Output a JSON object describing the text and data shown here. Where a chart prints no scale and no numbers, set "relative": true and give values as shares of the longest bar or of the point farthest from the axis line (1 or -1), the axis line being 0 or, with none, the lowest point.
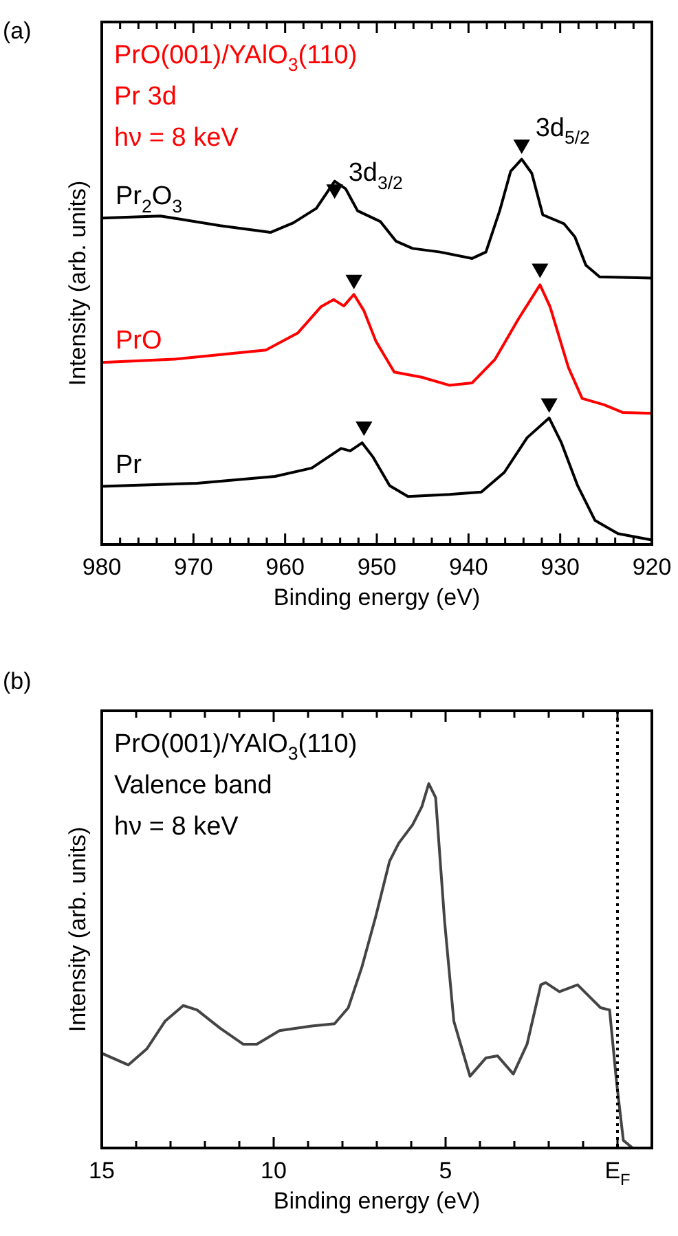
{
  "chart_data": [
    {
      "type": "line",
      "title": "(a)",
      "xlabel": "Binding energy (eV)",
      "ylabel": "Intensity (arb. units)",
      "relative": true,
      "legend": false,
      "tick_labels": "x",
      "marker": "none",
      "xlim": [
        980,
        920
      ],
      "xticks": [
        980,
        {
          "value": 978,
          "label": null
        },
        {
          "value": 976,
          "label": null
        },
        {
          "value": 974,
          "label": null
        },
        {
          "value": 972,
          "label": null
        },
        970,
        {
          "value": 968,
          "label": null
        },
        {
          "value": 966,
          "label": null
        },
        {
          "value": 964,
          "label": null
        },
        {
          "value": 962,
          "label": null
        },
        960,
        {
          "value": 958,
          "label": null
        },
        {
          "value": 956,
          "label": null
        },
        {
          "value": 954,
          "label": null
        },
        {
          "value": 952,
          "label": null
        },
        950,
        {
          "value": 948,
          "label": null
        },
        {
          "value": 946,
          "label": null
        },
        {
          "value": 944,
          "label": null
        },
        {
          "value": 942,
          "label": null
        },
        940,
        {
          "value": 938,
          "label": null
        },
        {
          "value": 936,
          "label": null
        },
        {
          "value": 934,
          "label": null
        },
        {
          "value": 932,
          "label": null
        },
        930,
        {
          "value": 928,
          "label": null
        },
        {
          "value": 926,
          "label": null
        },
        {
          "value": 924,
          "label": null
        },
        {
          "value": 922,
          "label": null
        },
        920
      ],
      "annotations": [
        "PrO(001)/YAlO$_{3}$(110)",
        "Pr 3d",
        "hν = 8 keV",
        {
          "text": "3d$_{3/2}$",
          "x": 954.6,
          "y": 0.888
        },
        {
          "text": "3d$_{5/2}$",
          "x": 934.2,
          "y": 1.0
        }
      ],
      "series": [
        {
          "name": "Pr$_{2}$O$_{3}$",
          "color": "#000000",
          "x": [
            980,
            973.6,
            967.1,
            961.6,
            959.1,
            956.6,
            954.6,
            953.4,
            952.1,
            949.6,
            947.9,
            946.1,
            943.1,
            939.6,
            938.1,
            936.6,
            935.4,
            934.2,
            933.1,
            931.9,
            929.6,
            928.4,
            927.2,
            925.7,
            920
          ],
          "values": [
            0.816,
            0.821,
            0.797,
            0.78,
            0.804,
            0.84,
            0.908,
            0.889,
            0.834,
            0.807,
            0.758,
            0.74,
            0.731,
            0.715,
            0.731,
            0.834,
            0.933,
            0.963,
            0.928,
            0.824,
            0.802,
            0.769,
            0.698,
            0.669,
            0.666
          ]
        },
        {
          "name": "PrO",
          "color": "#ff0000",
          "x": [
            980,
            972.1,
            962.1,
            958.6,
            956.1,
            954.7,
            953.6,
            952.5,
            951.4,
            950.1,
            948.1,
            945.1,
            942.1,
            939.6,
            937.1,
            934.6,
            932.2,
            931.1,
            929.1,
            927.6,
            925.2,
            923.2,
            920
          ],
          "values": [
            0.455,
            0.463,
            0.486,
            0.529,
            0.594,
            0.612,
            0.596,
            0.625,
            0.584,
            0.508,
            0.431,
            0.418,
            0.398,
            0.404,
            0.463,
            0.562,
            0.649,
            0.594,
            0.442,
            0.365,
            0.349,
            0.33,
            0.328
          ]
        },
        {
          "name": "Pr",
          "color": "#000000",
          "x": [
            980,
            969.6,
            961.1,
            957.1,
            953.9,
            952.9,
            951.6,
            950.4,
            948.6,
            946.6,
            942.1,
            938.6,
            936.1,
            933.6,
            931.2,
            929.9,
            928.1,
            926.2,
            923.7,
            920
          ],
          "values": [
            0.145,
            0.153,
            0.17,
            0.191,
            0.24,
            0.234,
            0.254,
            0.218,
            0.147,
            0.12,
            0.125,
            0.131,
            0.18,
            0.267,
            0.316,
            0.256,
            0.147,
            0.06,
            0.027,
            0.011
          ]
        },
        {
          "type": "scatter",
          "marker": "triangle",
          "color": "#000000",
          "x": [
            954.6,
            934.2,
            952.5,
            932.2,
            951.4,
            931.2
          ],
          "values": [
            0.888,
            1.0,
            0.662,
            0.69,
            0.295,
            0.353
          ]
        }
      ]
    },
    {
      "type": "line",
      "title": "(b)",
      "xlabel": "Binding energy (eV)",
      "ylabel": "Intensity (arb. units)",
      "relative": true,
      "legend": false,
      "tick_labels": "x",
      "marker": "none",
      "xlim": [
        15,
        -1
      ],
      "xticks": [
        15,
        {
          "value": 14,
          "label": null
        },
        {
          "value": 13,
          "label": null
        },
        {
          "value": 12,
          "label": null
        },
        {
          "value": 11,
          "label": null
        },
        10,
        {
          "value": 9,
          "label": null
        },
        {
          "value": 8,
          "label": null
        },
        {
          "value": 7,
          "label": null
        },
        {
          "value": 6,
          "label": null
        },
        5,
        {
          "value": 4,
          "label": null
        },
        {
          "value": 3,
          "label": null
        },
        {
          "value": 2,
          "label": null
        },
        {
          "value": 1,
          "label": null
        },
        {
          "value": 0,
          "label": "E$_{F}$"
        }
      ],
      "annotations": [
        "PrO(001)/YAlO$_{3}$(110)",
        "Valence band",
        "hν = 8 keV"
      ],
      "ref_lines": [
        {
          "axis": "x",
          "value": 0,
          "color": "#000000",
          "line_style": "dotted"
        }
      ],
      "series": [
        {
          "color": "#444444",
          "x": [
            15,
            14.23,
            13.69,
            13.16,
            12.63,
            12.23,
            11.56,
            10.89,
            10.49,
            9.83,
            8.89,
            8.23,
            7.83,
            7.43,
            7.03,
            6.63,
            6.36,
            5.96,
            5.69,
            5.49,
            5.29,
            5.03,
            4.76,
            4.29,
            3.83,
            3.49,
            3.03,
            2.63,
            2.23,
            2.09,
            1.69,
            1.16,
            0.76,
            0.49,
            0.23,
            0.03,
            -0.17,
            -0.44,
            -1.0
          ],
          "values": [
            0.26,
            0.228,
            0.272,
            0.348,
            0.391,
            0.379,
            0.329,
            0.285,
            0.285,
            0.322,
            0.335,
            0.341,
            0.385,
            0.498,
            0.636,
            0.787,
            0.837,
            0.887,
            0.937,
            1.0,
            0.962,
            0.624,
            0.348,
            0.197,
            0.247,
            0.253,
            0.203,
            0.285,
            0.448,
            0.454,
            0.429,
            0.448,
            0.41,
            0.385,
            0.379,
            0.184,
            0.021,
            0,
            0
          ]
        }
      ]
    }
  ]
}
